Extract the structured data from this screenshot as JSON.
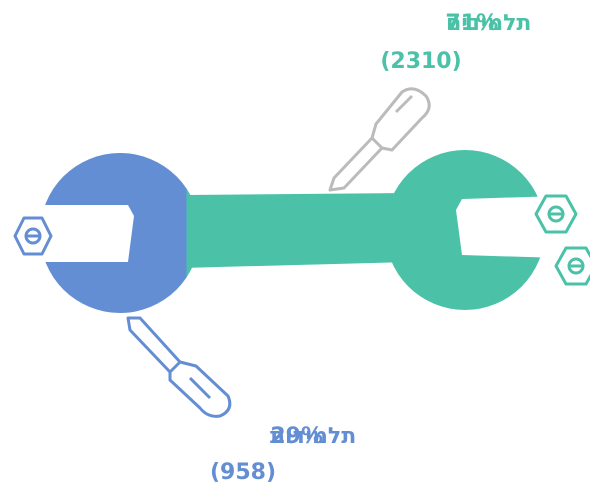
{
  "chart_data": {
    "type": "wrench",
    "categories": [
      "תלמידות",
      "תלמידים"
    ],
    "values": [
      29,
      71
    ],
    "value_labels": [
      "29%",
      "71%"
    ],
    "counts": [
      958,
      2310
    ],
    "count_labels": [
      "(958)",
      "(2310)"
    ],
    "colors": [
      "#638ed3",
      "#4bc2a8"
    ]
  }
}
